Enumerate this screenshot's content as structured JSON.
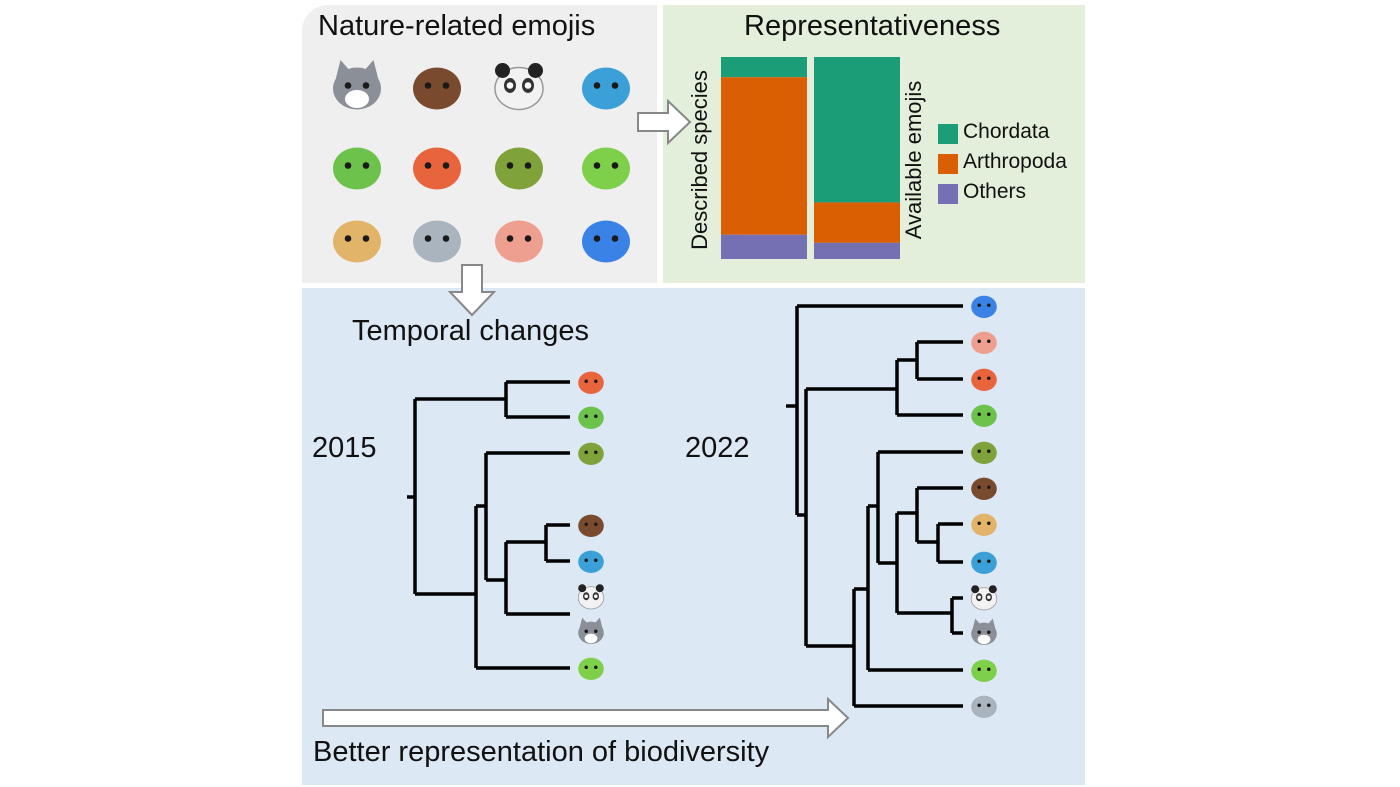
{
  "emoji_panel": {
    "title": "Nature-related emojis",
    "emojis": [
      "wolf",
      "boar",
      "panda",
      "whale",
      "caterpillar",
      "octopus",
      "turtle",
      "frog",
      "giraffe",
      "shark",
      "worm",
      "jellyfish"
    ]
  },
  "representativeness": {
    "title": "Representativeness",
    "legend": [
      {
        "label": "Chordata",
        "color": "#1b9e77"
      },
      {
        "label": "Arthropoda",
        "color": "#d95f02"
      },
      {
        "label": "Others",
        "color": "#7570b3"
      }
    ],
    "chart_data": {
      "type": "bar",
      "stacked": true,
      "normalized": true,
      "categories": [
        "Described species",
        "Available emojis"
      ],
      "series": [
        {
          "name": "Chordata",
          "values": [
            10,
            72
          ]
        },
        {
          "name": "Arthropoda",
          "values": [
            78,
            20
          ]
        },
        {
          "name": "Others",
          "values": [
            12,
            8
          ]
        }
      ],
      "ylim": [
        0,
        100
      ],
      "legend_position": "right"
    }
  },
  "temporal": {
    "title": "Temporal changes",
    "tree_2015": {
      "label": "2015",
      "leaves": [
        "octopus",
        "caterpillar",
        "turtle",
        "boar",
        "whale",
        "panda",
        "wolf",
        "frog"
      ]
    },
    "tree_2022": {
      "label": "2022",
      "leaves": [
        "jellyfish",
        "worm",
        "octopus",
        "caterpillar",
        "turtle",
        "boar",
        "giraffe",
        "whale",
        "panda",
        "wolf",
        "frog",
        "shark"
      ]
    },
    "caption": "Better representation of biodiversity"
  },
  "emoji_colors": {
    "wolf": "#8a8f98",
    "boar": "#7a4a2e",
    "panda": "#f2f2f2",
    "whale": "#3ba0d8",
    "caterpillar": "#6cc24a",
    "octopus": "#e8643c",
    "turtle": "#7fa33a",
    "frog": "#7ed04b",
    "giraffe": "#e2b46a",
    "shark": "#a9b4bf",
    "worm": "#ef9f8f",
    "jellyfish": "#3b82e6"
  }
}
